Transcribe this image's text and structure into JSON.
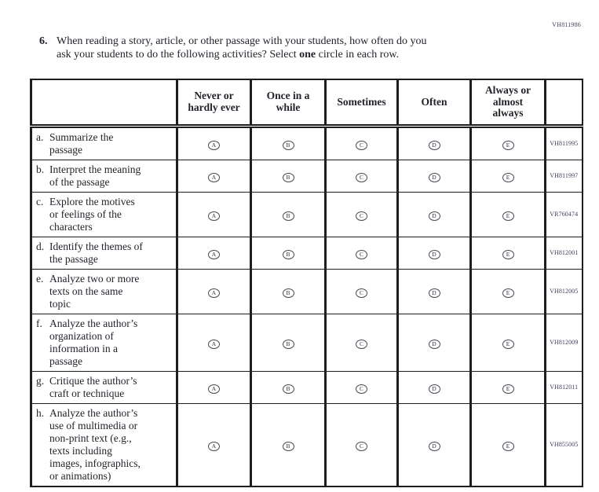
{
  "page": {
    "form_code": "VH811986"
  },
  "question": {
    "number": "6.",
    "line1": "When reading a story, article, or other passage with your students, how often do you",
    "line2_before": "ask your students to do the following activities? Select ",
    "line2_bold": "one",
    "line2_after": " circle in each row."
  },
  "table": {
    "column_headers": [
      "Never or\nhardly ever",
      "Once in a\nwhile",
      "Sometimes",
      "Often",
      "Always or\nalmost\nalways"
    ],
    "options": [
      "A",
      "B",
      "C",
      "D",
      "E"
    ],
    "rows": [
      {
        "letter": "a.",
        "text": "Summarize the\npassage",
        "code": "VH811995"
      },
      {
        "letter": "b.",
        "text": "Interpret the meaning\nof the passage",
        "code": "VH811997"
      },
      {
        "letter": "c.",
        "text": "Explore the motives\nor feelings of the\ncharacters",
        "code": "VR760474"
      },
      {
        "letter": "d.",
        "text": "Identify the themes of\nthe passage",
        "code": "VH812001"
      },
      {
        "letter": "e.",
        "text": "Analyze two or more\ntexts on the same\ntopic",
        "code": "VH812005"
      },
      {
        "letter": "f.",
        "text": "Analyze the author’s\norganization of\ninformation in a\npassage",
        "code": "VH812009"
      },
      {
        "letter": "g.",
        "text": "Critique the author’s\ncraft or technique",
        "code": "VH812011"
      },
      {
        "letter": "h.",
        "text": "Analyze the author’s\nuse of multimedia or\nnon-print text (e.g.,\ntexts including\nimages, infographics,\nor animations)",
        "code": "VH855005"
      }
    ]
  }
}
